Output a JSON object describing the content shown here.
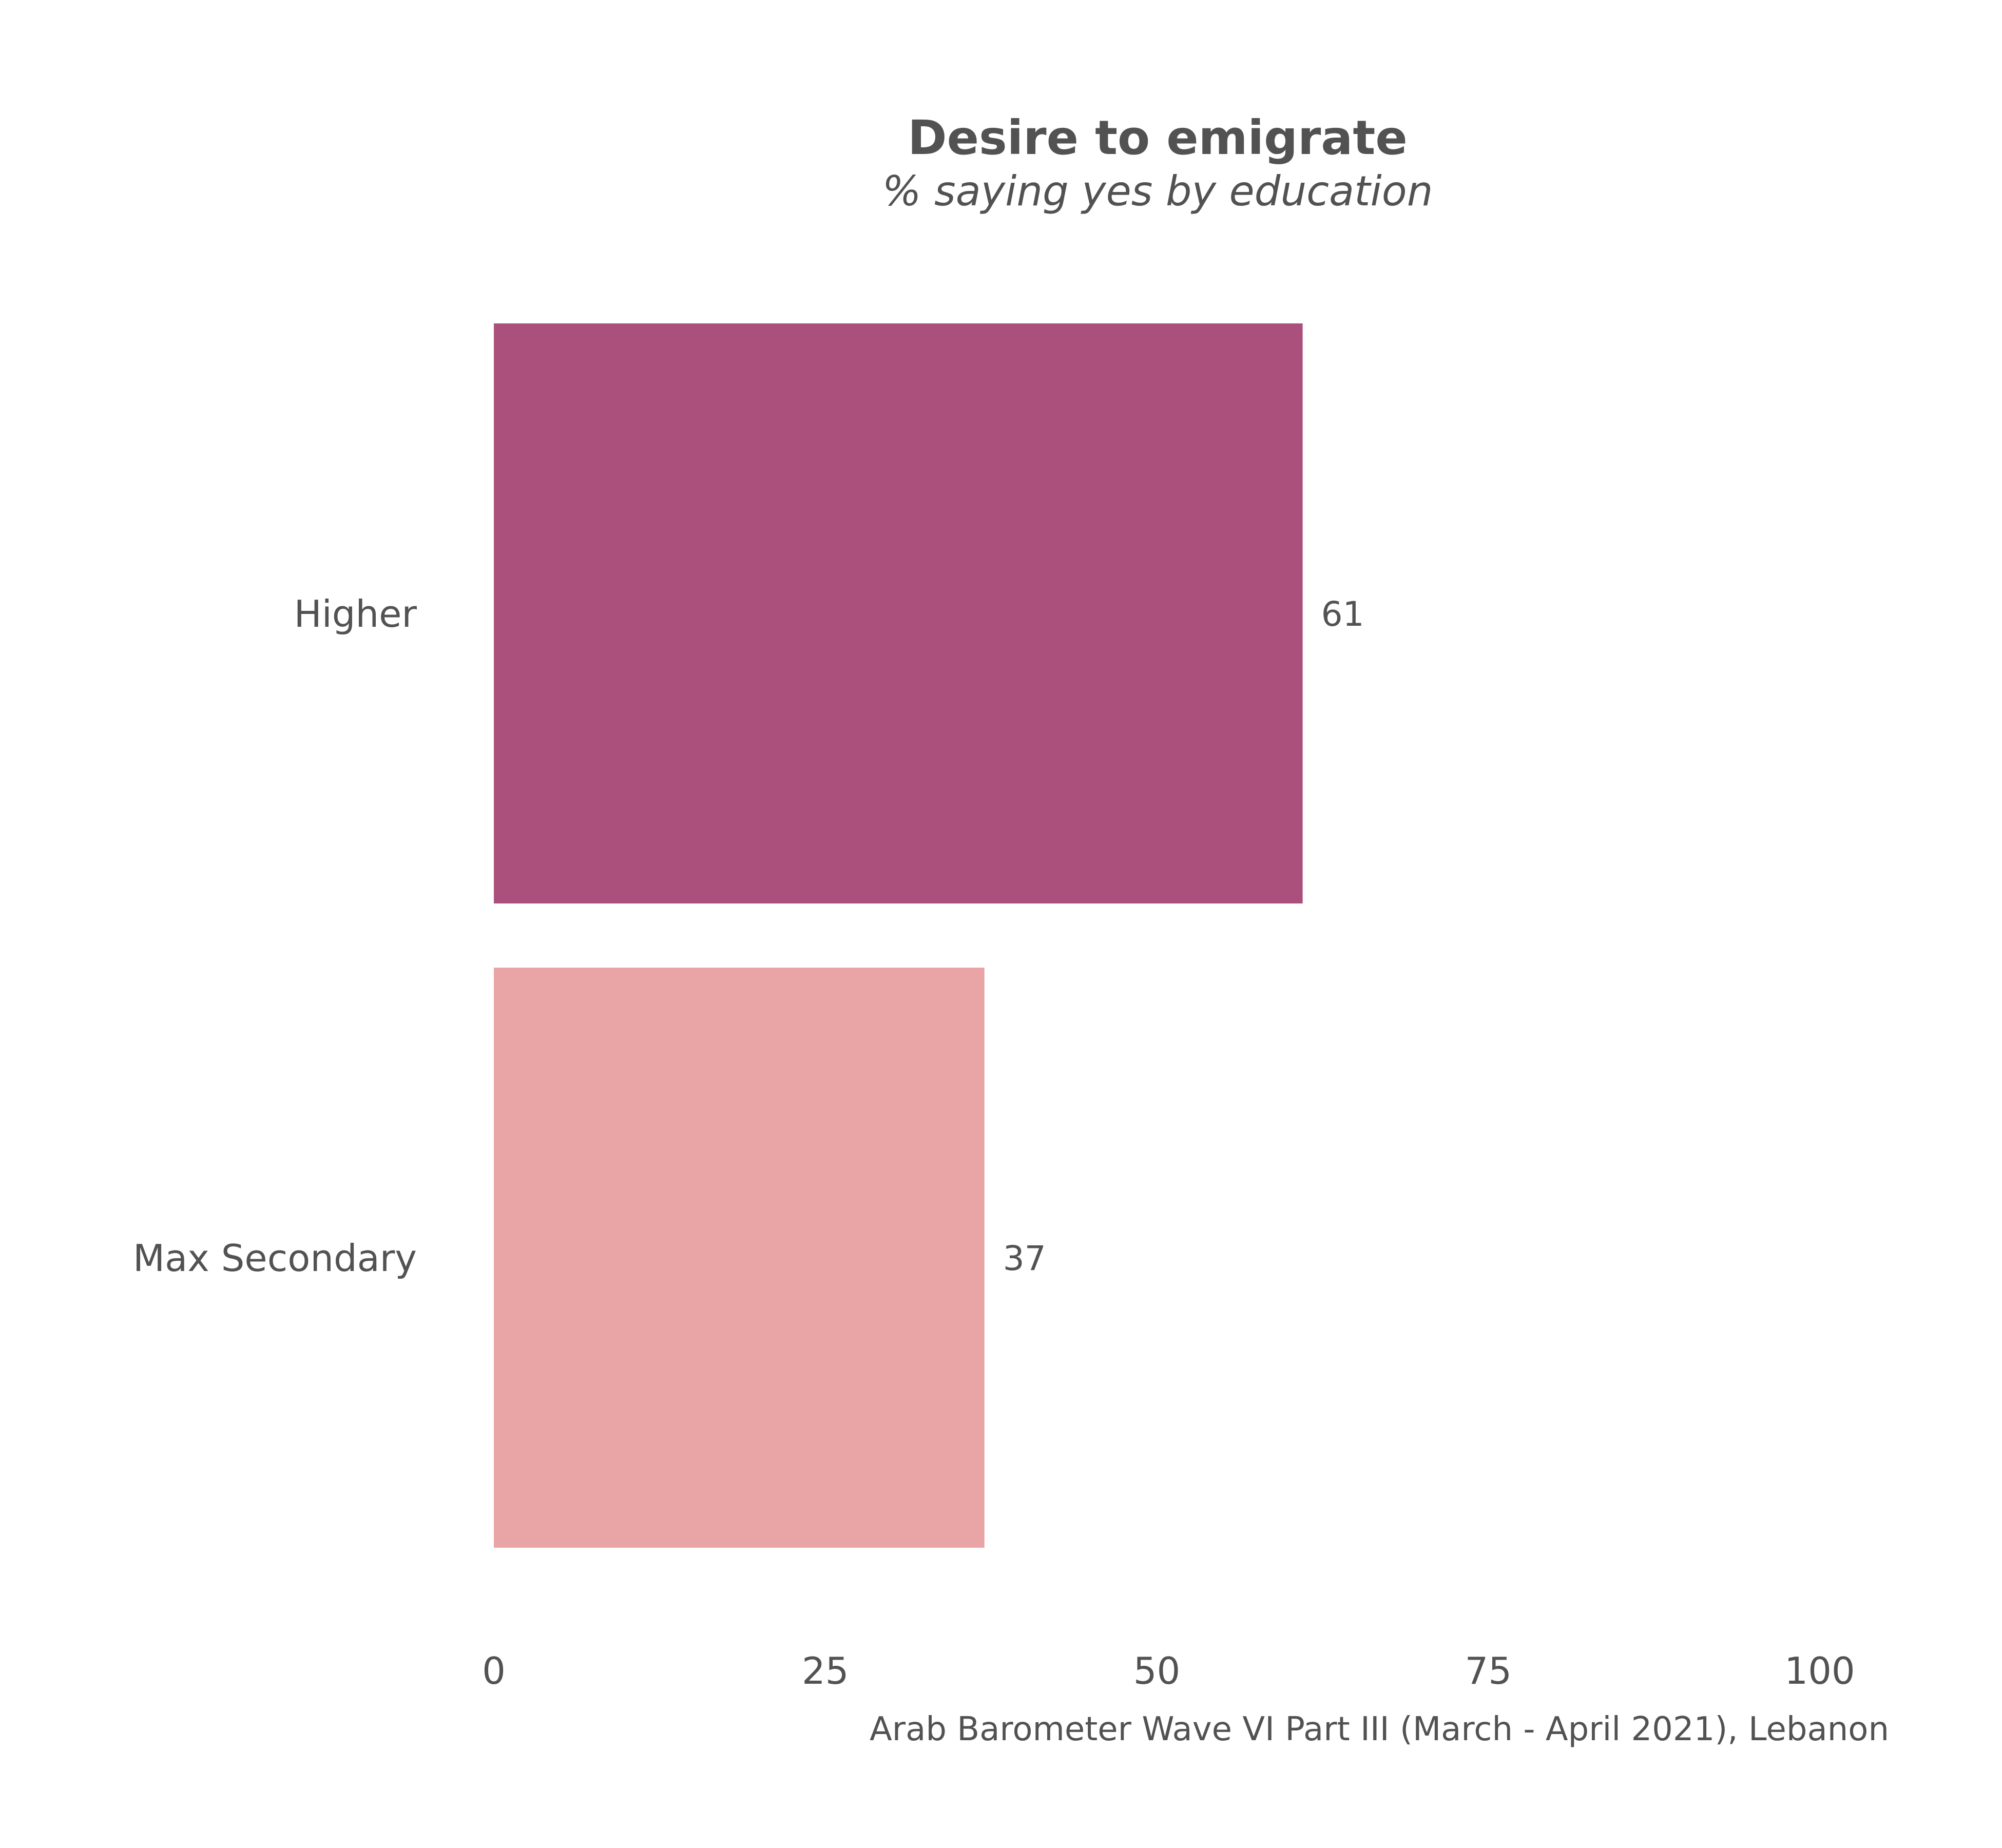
{
  "chart_data": {
    "type": "bar",
    "orientation": "horizontal",
    "title": "Desire to emigrate",
    "subtitle": "% saying yes by education",
    "caption": "Arab Barometer Wave VI Part III (March - April 2021), Lebanon",
    "categories": [
      "Higher",
      "Max Secondary"
    ],
    "values": [
      61,
      37
    ],
    "data_labels": [
      "61",
      "37"
    ],
    "colors": [
      "#ab507c",
      "#e9a4a5"
    ],
    "xlim": [
      0,
      100
    ],
    "x_ticks": [
      0,
      25,
      50,
      75,
      100
    ],
    "x_tick_labels": [
      "0",
      "25",
      "50",
      "75",
      "100"
    ],
    "grid": false,
    "legend": "none"
  }
}
